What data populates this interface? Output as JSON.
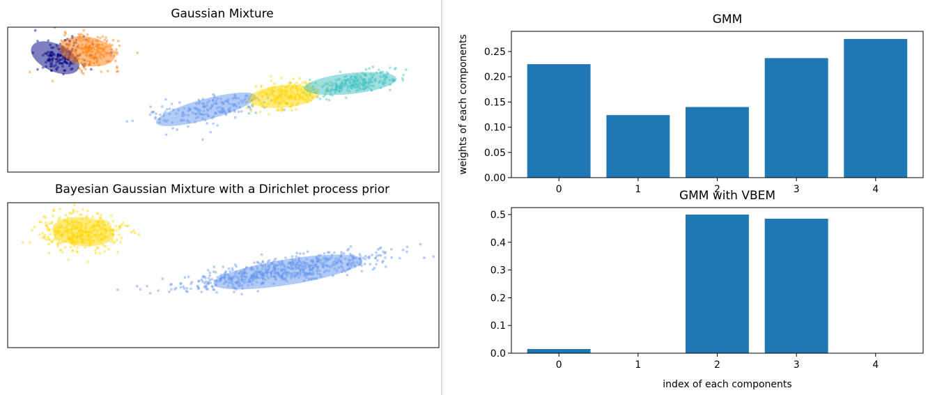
{
  "chart_data": [
    {
      "type": "scatter",
      "title": "Gaussian Mixture",
      "xlim": [
        -10,
        10
      ],
      "ylim": [
        -3,
        6
      ],
      "ticks_visible": false,
      "clusters": [
        {
          "color": "#000080",
          "mean": [
            -7.5,
            4.2
          ],
          "cov": [
            [
              0.35,
              0.0
            ],
            [
              0.0,
              0.3
            ]
          ],
          "n": 160,
          "ellipse": {
            "center": [
              -7.8,
              4.1
            ],
            "width": 2.4,
            "height": 1.7,
            "angle": -25
          }
        },
        {
          "color": "#ff7f0e",
          "mean": [
            -6.1,
            4.5
          ],
          "cov": [
            [
              0.45,
              0.0
            ],
            [
              0.0,
              0.28
            ]
          ],
          "n": 200,
          "ellipse": {
            "center": [
              -6.3,
              4.5
            ],
            "width": 2.6,
            "height": 1.8,
            "angle": -10
          }
        },
        {
          "color": "#6495ed",
          "mean": [
            -0.6,
            0.9
          ],
          "cov": [
            [
              2.5,
              0.5
            ],
            [
              0.5,
              0.3
            ]
          ],
          "n": 200,
          "ellipse": {
            "center": [
              -0.8,
              0.9
            ],
            "width": 4.8,
            "height": 1.3,
            "angle": 15
          }
        },
        {
          "color": "#ffd700",
          "mean": [
            2.9,
            1.8
          ],
          "cov": [
            [
              0.55,
              0.1
            ],
            [
              0.1,
              0.22
            ]
          ],
          "n": 210,
          "ellipse": {
            "center": [
              2.8,
              1.7
            ],
            "width": 3.2,
            "height": 1.4,
            "angle": 5
          }
        },
        {
          "color": "#40c0c0",
          "mean": [
            6.1,
            2.5
          ],
          "cov": [
            [
              1.1,
              0.25
            ],
            [
              0.25,
              0.14
            ]
          ],
          "n": 230,
          "ellipse": {
            "center": [
              5.9,
              2.5
            ],
            "width": 4.3,
            "height": 1.3,
            "angle": 6
          }
        }
      ]
    },
    {
      "type": "scatter",
      "title": "Bayesian Gaussian Mixture with a Dirichlet process prior",
      "xlim": [
        -10,
        10
      ],
      "ylim": [
        -3,
        6
      ],
      "ticks_visible": false,
      "clusters": [
        {
          "color": "#ffd700",
          "mean": [
            -6.6,
            4.2
          ],
          "cov": [
            [
              0.85,
              0.0
            ],
            [
              0.0,
              0.35
            ]
          ],
          "n": 380,
          "ellipse": {
            "center": [
              -6.5,
              4.2
            ],
            "width": 2.9,
            "height": 1.8,
            "angle": -5
          }
        },
        {
          "color": "#6495ed",
          "mean": [
            2.9,
            1.8
          ],
          "cov": [
            [
              6.0,
              1.15
            ],
            [
              1.15,
              0.35
            ]
          ],
          "n": 620,
          "ellipse": {
            "center": [
              3.0,
              1.7
            ],
            "width": 7.0,
            "height": 1.6,
            "angle": 9
          }
        }
      ]
    },
    {
      "type": "bar",
      "title": "GMM",
      "categories": [
        "0",
        "1",
        "2",
        "3",
        "4"
      ],
      "values": [
        0.225,
        0.124,
        0.14,
        0.237,
        0.275
      ],
      "ylabel": "weights of each components",
      "xlabel": "",
      "ylim": [
        0,
        0.29
      ],
      "yticks": [
        "0.00",
        "0.05",
        "0.10",
        "0.15",
        "0.20",
        "0.25"
      ],
      "color": "#1f77b4"
    },
    {
      "type": "bar",
      "title": "GMM with VBEM",
      "categories": [
        "0",
        "1",
        "2",
        "3",
        "4"
      ],
      "values": [
        0.015,
        0.0,
        0.5,
        0.485,
        0.0
      ],
      "ylabel": "",
      "xlabel": "index of each components",
      "ylim": [
        0,
        0.525
      ],
      "yticks": [
        "0.0",
        "0.1",
        "0.2",
        "0.3",
        "0.4",
        "0.5"
      ],
      "color": "#1f77b4"
    }
  ]
}
